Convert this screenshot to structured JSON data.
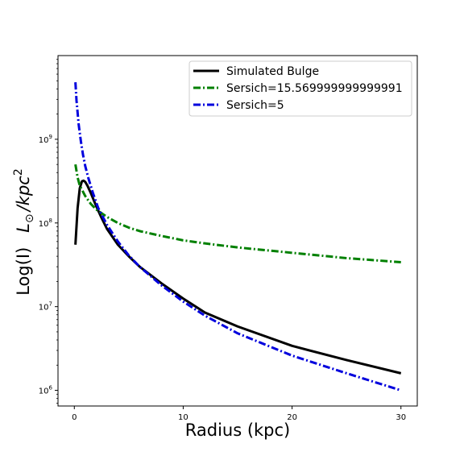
{
  "chart_data": {
    "type": "line",
    "xlabel": "Radius (kpc)",
    "ylabel": "Log(I)",
    "ylabel_unit_base": "L",
    "ylabel_unit_sub": "⊙",
    "ylabel_unit_rest": "/kpc",
    "ylabel_unit_sup": "2",
    "xlim": [
      -1.5,
      31.5
    ],
    "ylim": [
      650000,
      10000000000
    ],
    "yscale": "log",
    "grid": false,
    "legend_position": "top-right",
    "x_ticks": [
      {
        "value": 0,
        "label": "0"
      },
      {
        "value": 10,
        "label": "10"
      },
      {
        "value": 20,
        "label": "20"
      },
      {
        "value": 30,
        "label": "30"
      }
    ],
    "y_ticks": [
      {
        "value": 1000000,
        "base": "10",
        "exp": "6"
      },
      {
        "value": 10000000,
        "base": "10",
        "exp": "7"
      },
      {
        "value": 100000000,
        "base": "10",
        "exp": "8"
      },
      {
        "value": 1000000000,
        "base": "10",
        "exp": "9"
      }
    ],
    "series": [
      {
        "name": "Simulated Bulge",
        "color": "#000000",
        "dash": "solid",
        "x": [
          0.1,
          0.3,
          0.5,
          0.7,
          0.85,
          1.0,
          1.2,
          1.5,
          2.0,
          2.5,
          3,
          4,
          5,
          6,
          8,
          10,
          12,
          15,
          20,
          25,
          30
        ],
        "y": [
          55000000,
          150000000,
          260000000,
          315000000,
          320000000,
          310000000,
          280000000,
          230000000,
          160000000,
          115000000,
          85000000,
          55000000,
          40000000,
          30000000,
          19000000,
          12500000,
          8500000,
          5800000,
          3400000,
          2300000,
          1600000
        ]
      },
      {
        "name": "Sersich=15.569999999999991",
        "color": "#008000",
        "dash": "dashdot",
        "x": [
          0.1,
          0.3,
          0.5,
          1,
          1.5,
          2,
          3,
          4,
          5,
          6,
          8,
          10,
          12,
          15,
          20,
          25,
          30
        ],
        "y": [
          500000000,
          350000000,
          280000000,
          210000000,
          170000000,
          145000000,
          118000000,
          100000000,
          88000000,
          80000000,
          70000000,
          62000000,
          57000000,
          51000000,
          44000000,
          38000000,
          34000000
        ]
      },
      {
        "name": "Sersich=5",
        "color": "#0000dd",
        "dash": "dashdot",
        "x": [
          0.1,
          0.2,
          0.4,
          0.6,
          0.8,
          1.0,
          1.3,
          1.7,
          2.2,
          3,
          4,
          5,
          6,
          8,
          10,
          12,
          15,
          20,
          25,
          30
        ],
        "y": [
          4800000000,
          2900000000,
          1500000000,
          950000000,
          650000000,
          480000000,
          340000000,
          230000000,
          150000000,
          95000000,
          60000000,
          41000000,
          30000000,
          18000000,
          11500000,
          7800000,
          4800000,
          2600000,
          1600000,
          1000000
        ]
      }
    ]
  }
}
